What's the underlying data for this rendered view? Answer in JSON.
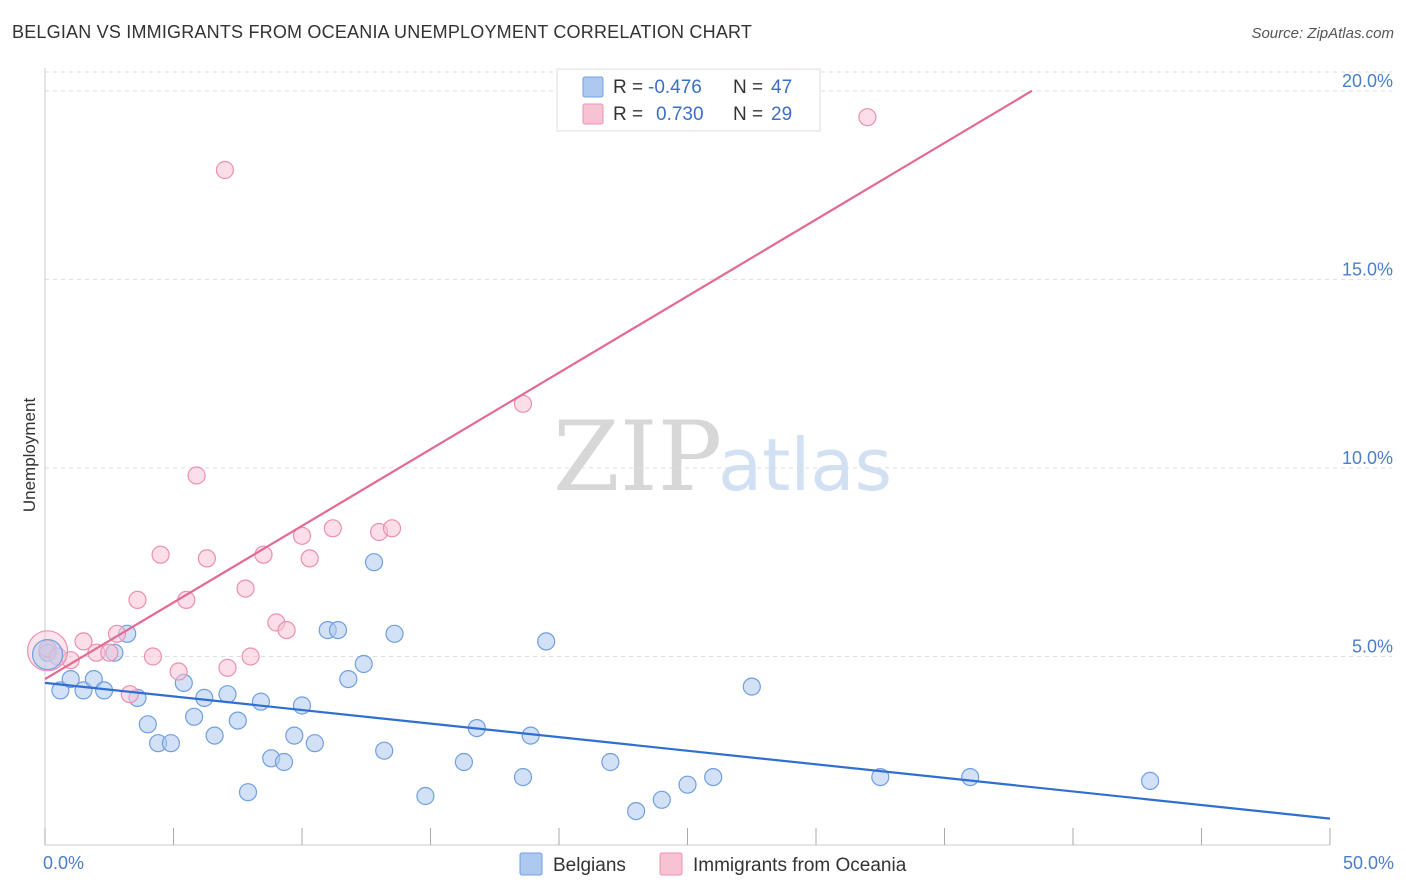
{
  "title": "BELGIAN VS IMMIGRANTS FROM OCEANIA UNEMPLOYMENT CORRELATION CHART",
  "source": "Source: ZipAtlas.com",
  "watermark": {
    "zip": "ZIP",
    "atlas": "atlas"
  },
  "legend": {
    "r_label": "R =",
    "n_label": "N =",
    "rows": [
      {
        "r": "-0.476",
        "n": "47",
        "color": "#aec9f0",
        "stroke": "#6f9fe0"
      },
      {
        "r": "0.730",
        "n": "29",
        "color": "#f7c3d3",
        "stroke": "#ec8fb0"
      }
    ]
  },
  "bottom_legend": [
    {
      "label": "Belgians",
      "color": "#aec9f0",
      "stroke": "#6f9fe0"
    },
    {
      "label": "Immigrants from Oceania",
      "color": "#f7c3d3",
      "stroke": "#ec8fb0"
    }
  ],
  "chart_data": {
    "type": "scatter",
    "title": "BELGIAN VS IMMIGRANTS FROM OCEANIA UNEMPLOYMENT CORRELATION CHART",
    "xlabel": "",
    "ylabel": "Unemployment",
    "xlim": [
      0,
      50
    ],
    "ylim": [
      0,
      20.5
    ],
    "x_tick_labels": [
      "0.0%",
      "50.0%"
    ],
    "y_ticks": [
      5,
      10,
      15,
      20
    ],
    "y_tick_labels": [
      "5.0%",
      "10.0%",
      "15.0%",
      "20.0%"
    ],
    "series": [
      {
        "name": "Belgians",
        "color": "#6f9fe0",
        "fill": "#aec9f0",
        "trend": {
          "x0": 0,
          "y0": 4.3,
          "x1": 50,
          "y1": 0.7,
          "color": "#2f6fd0"
        },
        "points": [
          [
            0.1,
            5.1
          ],
          [
            0.6,
            4.1
          ],
          [
            1.0,
            4.4
          ],
          [
            1.5,
            4.1
          ],
          [
            1.9,
            4.4
          ],
          [
            2.3,
            4.1
          ],
          [
            2.7,
            5.1
          ],
          [
            3.2,
            5.6
          ],
          [
            3.6,
            3.9
          ],
          [
            4.0,
            3.2
          ],
          [
            4.4,
            2.7
          ],
          [
            4.9,
            2.7
          ],
          [
            5.4,
            4.3
          ],
          [
            5.8,
            3.4
          ],
          [
            6.2,
            3.9
          ],
          [
            6.6,
            2.9
          ],
          [
            7.1,
            4.0
          ],
          [
            7.5,
            3.3
          ],
          [
            7.9,
            1.4
          ],
          [
            8.4,
            3.8
          ],
          [
            8.8,
            2.3
          ],
          [
            9.3,
            2.2
          ],
          [
            9.7,
            2.9
          ],
          [
            10.0,
            3.7
          ],
          [
            10.5,
            2.7
          ],
          [
            11.0,
            5.7
          ],
          [
            11.4,
            5.7
          ],
          [
            11.8,
            4.4
          ],
          [
            12.4,
            4.8
          ],
          [
            12.8,
            7.5
          ],
          [
            13.2,
            2.5
          ],
          [
            13.6,
            5.6
          ],
          [
            14.8,
            1.3
          ],
          [
            16.3,
            2.2
          ],
          [
            16.8,
            3.1
          ],
          [
            18.6,
            1.8
          ],
          [
            18.9,
            2.9
          ],
          [
            19.5,
            5.4
          ],
          [
            22.0,
            2.2
          ],
          [
            23.0,
            0.9
          ],
          [
            24.0,
            1.2
          ],
          [
            25.0,
            1.6
          ],
          [
            26.0,
            1.8
          ],
          [
            27.5,
            4.2
          ],
          [
            32.5,
            1.8
          ],
          [
            36.0,
            1.8
          ],
          [
            43.0,
            1.7
          ]
        ]
      },
      {
        "name": "Immigrants from Oceania",
        "color": "#ec8fb0",
        "fill": "#f7c3d3",
        "trend": {
          "x0": 0,
          "y0": 4.4,
          "x1": 38.4,
          "y1": 20.0,
          "color": "#e26a95"
        },
        "points": [
          [
            0.1,
            5.2
          ],
          [
            0.5,
            5.0
          ],
          [
            1.0,
            4.9
          ],
          [
            1.5,
            5.4
          ],
          [
            2.0,
            5.1
          ],
          [
            2.5,
            5.1
          ],
          [
            2.8,
            5.6
          ],
          [
            3.3,
            4.0
          ],
          [
            3.6,
            6.5
          ],
          [
            4.2,
            5.0
          ],
          [
            4.5,
            7.7
          ],
          [
            5.2,
            4.6
          ],
          [
            5.5,
            6.5
          ],
          [
            5.9,
            9.8
          ],
          [
            6.3,
            7.6
          ],
          [
            7.1,
            4.7
          ],
          [
            7.0,
            17.9
          ],
          [
            7.8,
            6.8
          ],
          [
            8.0,
            5.0
          ],
          [
            8.5,
            7.7
          ],
          [
            9.0,
            5.9
          ],
          [
            9.4,
            5.7
          ],
          [
            10.0,
            8.2
          ],
          [
            10.3,
            7.6
          ],
          [
            11.2,
            8.4
          ],
          [
            13.0,
            8.3
          ],
          [
            13.5,
            8.4
          ],
          [
            18.6,
            11.7
          ],
          [
            32.0,
            19.3
          ]
        ]
      }
    ]
  }
}
